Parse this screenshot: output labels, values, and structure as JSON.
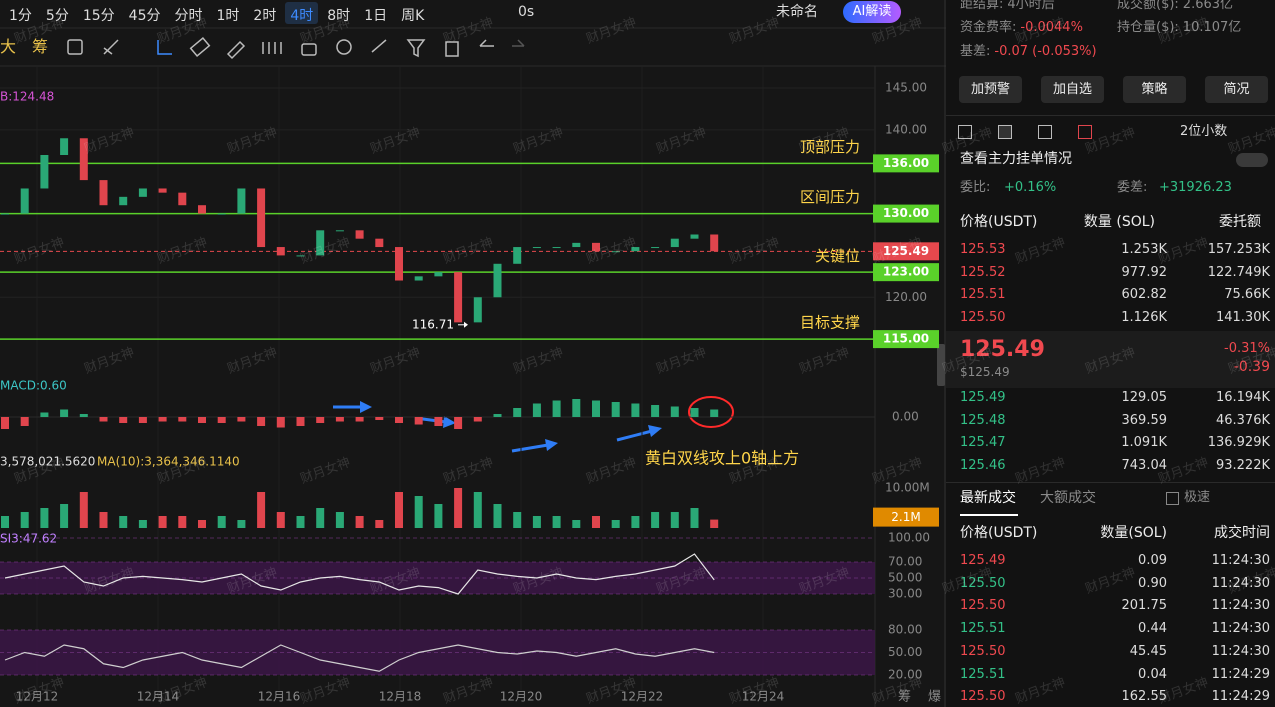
{
  "toolbar": {
    "intervals": [
      "1分",
      "5分",
      "15分",
      "45分",
      "分时",
      "1时",
      "2时",
      "4时",
      "8时",
      "1日",
      "周K"
    ],
    "active": 7,
    "timer": "0s",
    "layout": "未命名",
    "ai": "AI解读"
  },
  "drawbar": [
    "大",
    "筹"
  ],
  "chart": {
    "bb_label": "B:124.48",
    "ylim": [
      113.1,
      146.56
    ],
    "yticks": [
      {
        "value": 145,
        "label": "145.00"
      },
      {
        "value": 140,
        "label": "140.00"
      },
      {
        "value": 120,
        "label": "120.00"
      }
    ],
    "levels": [
      {
        "value": 136,
        "label": "136.00",
        "name": "顶部压力",
        "color": "#5ad12a"
      },
      {
        "value": 130,
        "label": "130.00",
        "name": "区间压力",
        "color": "#5ad12a"
      },
      {
        "value": 125.49,
        "name": "关键位",
        "color": "#e5484d",
        "dashed": true
      },
      {
        "value": 123,
        "label": "123.00",
        "color": "#5ad12a"
      },
      {
        "value": 115,
        "label": "115.00",
        "name": "目标支撑",
        "color": "#5ad12a"
      }
    ],
    "closes": [
      130,
      133,
      137,
      139,
      134,
      131,
      132,
      133,
      132.5,
      131,
      130,
      130,
      133,
      126,
      125,
      125,
      128,
      128,
      127,
      126,
      122,
      122.5,
      123,
      117,
      120,
      124,
      126,
      126,
      126,
      126.5,
      125.5,
      125.5,
      126,
      126,
      127,
      127.5,
      125.5
    ],
    "low": 116.71,
    "dates": [
      "12月12",
      "12月14",
      "12月16",
      "12月18",
      "12月20",
      "12月22",
      "12月24"
    ],
    "macd": {
      "label": "MACD:0.60",
      "ylim": [
        -2,
        2
      ],
      "zero": {
        "value": 0,
        "label": "0.00"
      },
      "hist": [
        -0.8,
        -0.6,
        0.3,
        0.5,
        0.2,
        -0.3,
        -0.4,
        -0.4,
        -0.3,
        -0.3,
        -0.4,
        -0.4,
        -0.3,
        -0.6,
        -0.7,
        -0.6,
        -0.4,
        -0.3,
        -0.3,
        -0.2,
        -0.4,
        -0.5,
        -0.6,
        -0.8,
        -0.3,
        0.2,
        0.6,
        0.9,
        1.1,
        1.2,
        1.1,
        1.0,
        0.9,
        0.8,
        0.7,
        0.6,
        0.5
      ]
    },
    "volume": {
      "label": "3,578,021.5620",
      "ma_label": "MA(10):3,364,346.1140",
      "ylim": [
        0,
        14500000
      ],
      "tick": {
        "value": 10000000,
        "label": "10.00M"
      },
      "last_label": "2.1M",
      "values": [
        3000000,
        4000000,
        5000000,
        6000000,
        9000000,
        4000000,
        3000000,
        2000000,
        3000000,
        3000000,
        2000000,
        3000000,
        2000000,
        9000000,
        4000000,
        3000000,
        5000000,
        4000000,
        3000000,
        2000000,
        9000000,
        8000000,
        6000000,
        10000000,
        9000000,
        6000000,
        4000000,
        3000000,
        3000000,
        2000000,
        3000000,
        2000000,
        3000000,
        4000000,
        4000000,
        5000000,
        2100000
      ]
    },
    "rsi": {
      "label": "SI3:47.62",
      "ylim": [
        0,
        100
      ],
      "yticks": [
        {
          "value": 100,
          "label": "100.00"
        },
        {
          "value": 70,
          "label": "70.00"
        },
        {
          "value": 50,
          "label": "50.00"
        },
        {
          "value": 30,
          "label": "30.00"
        }
      ],
      "values": [
        50,
        55,
        60,
        65,
        45,
        40,
        50,
        52,
        50,
        48,
        45,
        50,
        55,
        40,
        35,
        45,
        50,
        52,
        48,
        45,
        35,
        40,
        38,
        30,
        60,
        55,
        52,
        50,
        55,
        50,
        48,
        52,
        55,
        60,
        65,
        80,
        47.62
      ]
    },
    "kdj": {
      "ylim": [
        0,
        100
      ],
      "yticks": [
        {
          "value": 80,
          "label": "80.00"
        },
        {
          "value": 50,
          "label": "50.00"
        },
        {
          "value": 20,
          "label": "20.00"
        }
      ],
      "values": [
        40,
        50,
        45,
        60,
        55,
        35,
        30,
        40,
        45,
        50,
        40,
        35,
        30,
        45,
        60,
        50,
        40,
        35,
        30,
        25,
        40,
        50,
        55,
        60,
        55,
        50,
        48,
        52,
        50,
        45,
        50,
        55,
        48,
        45,
        50,
        55,
        50
      ]
    },
    "annotation": "黄白双线攻上0轴上方",
    "watermark": "财月女神",
    "corner": [
      "筹",
      "爆"
    ]
  },
  "panel": {
    "stats": [
      {
        "label": "距结算:",
        "value": "4小时后"
      },
      {
        "label": "成交额($):",
        "value": "2.663亿"
      },
      {
        "label": "资金费率:",
        "value": "-0.0044%"
      },
      {
        "label": "持仓量($):",
        "value": "10.107亿"
      },
      {
        "label": "基差:",
        "value": "-0.07 (-0.053%)"
      }
    ],
    "buttons": [
      "加预警",
      "加自选",
      "策略",
      "简况"
    ],
    "precision": "2位小数",
    "depth_link": "查看主力挂单情况",
    "ratio": {
      "label": "委比:",
      "value": "+0.16%"
    },
    "diff": {
      "label": "委差:",
      "value": "+31926.23"
    },
    "book_headers": [
      "价格(USDT)",
      "数量 (SOL)",
      "委托额"
    ],
    "asks": [
      [
        "125.53",
        "1.253K",
        "157.253K"
      ],
      [
        "125.52",
        "977.92",
        "122.749K"
      ],
      [
        "125.51",
        "602.82",
        "75.66K"
      ],
      [
        "125.50",
        "1.126K",
        "141.30K"
      ]
    ],
    "last": {
      "price": "125.49",
      "usd": "$125.49",
      "pct": "-0.31%",
      "change": "-0.39"
    },
    "bids": [
      [
        "125.49",
        "129.05",
        "16.194K"
      ],
      [
        "125.48",
        "369.59",
        "46.376K"
      ],
      [
        "125.47",
        "1.091K",
        "136.929K"
      ],
      [
        "125.46",
        "743.04",
        "93.222K"
      ]
    ],
    "trade_tabs": [
      "最新成交",
      "大额成交",
      "极速"
    ],
    "trade_headers": [
      "价格(USDT)",
      "数量(SOL)",
      "成交时间"
    ],
    "trades": [
      {
        "price": "125.49",
        "qty": "0.09",
        "time": "11:24:30",
        "side": "sell"
      },
      {
        "price": "125.50",
        "qty": "0.90",
        "time": "11:24:30",
        "side": "buy"
      },
      {
        "price": "125.50",
        "qty": "201.75",
        "time": "11:24:30",
        "side": "sell"
      },
      {
        "price": "125.51",
        "qty": "0.44",
        "time": "11:24:30",
        "side": "buy"
      },
      {
        "price": "125.50",
        "qty": "45.45",
        "time": "11:24:30",
        "side": "sell"
      },
      {
        "price": "125.51",
        "qty": "0.04",
        "time": "11:24:29",
        "side": "buy"
      },
      {
        "price": "125.50",
        "qty": "162.55",
        "time": "11:24:29",
        "side": "sell"
      }
    ]
  }
}
